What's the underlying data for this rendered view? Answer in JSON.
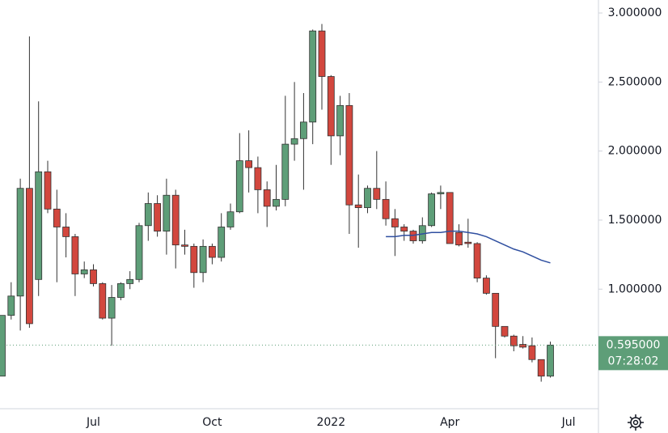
{
  "chart_data": {
    "type": "candlestick",
    "categories": [
      null,
      null,
      null,
      null,
      null,
      null,
      null,
      null,
      null,
      null,
      "Jul",
      null,
      null,
      null,
      null,
      null,
      null,
      null,
      null,
      null,
      null,
      null,
      null,
      "Oct",
      null,
      null,
      null,
      null,
      null,
      null,
      null,
      null,
      null,
      null,
      null,
      null,
      "2022",
      null,
      null,
      null,
      null,
      null,
      null,
      null,
      null,
      null,
      null,
      null,
      null,
      "Apr",
      null,
      null,
      null,
      null,
      null,
      null,
      null,
      null,
      null,
      null,
      null,
      null,
      "Jul",
      null,
      null
    ],
    "open": [
      0.37,
      0.81,
      0.95,
      1.73,
      1.07,
      1.85,
      1.58,
      1.45,
      1.38,
      1.11,
      1.14,
      1.04,
      0.79,
      0.94,
      1.04,
      1.07,
      1.46,
      1.62,
      1.42,
      1.68,
      1.32,
      1.31,
      1.12,
      1.31,
      1.23,
      1.45,
      1.56,
      1.93,
      1.88,
      1.72,
      1.6,
      1.65,
      2.05,
      2.09,
      2.21,
      2.87,
      2.54,
      2.11,
      2.33,
      1.61,
      1.59,
      1.73,
      1.65,
      1.51,
      1.45,
      1.42,
      1.35,
      1.46,
      1.69,
      1.7,
      1.41,
      1.34,
      1.33,
      1.08,
      0.97,
      0.73,
      0.66,
      0.6,
      0.59,
      0.49,
      0.37,
      null,
      null,
      null,
      null
    ],
    "high": [
      0.81,
      1.05,
      1.8,
      2.83,
      2.36,
      1.93,
      1.72,
      1.55,
      1.4,
      1.2,
      1.18,
      1.05,
      1.03,
      1.05,
      1.13,
      1.48,
      1.7,
      1.68,
      1.8,
      1.72,
      1.43,
      1.33,
      1.36,
      1.33,
      1.55,
      1.62,
      2.13,
      2.15,
      1.96,
      1.78,
      1.9,
      2.4,
      2.5,
      2.42,
      2.88,
      2.92,
      2.55,
      2.4,
      2.42,
      1.83,
      1.75,
      2.0,
      1.78,
      1.58,
      1.47,
      1.43,
      1.52,
      1.7,
      1.75,
      1.7,
      1.47,
      1.51,
      1.34,
      1.1,
      0.97,
      0.73,
      0.67,
      0.66,
      0.65,
      0.49,
      0.62,
      null,
      null,
      null,
      null
    ],
    "low": [
      0.37,
      0.78,
      0.7,
      0.72,
      0.95,
      1.55,
      1.05,
      1.23,
      0.95,
      1.08,
      1.02,
      0.78,
      0.59,
      0.92,
      1.0,
      1.05,
      1.35,
      1.38,
      1.25,
      1.15,
      1.25,
      1.01,
      1.05,
      1.18,
      1.2,
      1.43,
      1.55,
      1.7,
      1.55,
      1.45,
      1.57,
      1.6,
      1.93,
      1.72,
      2.05,
      2.3,
      1.9,
      1.97,
      1.4,
      1.3,
      1.55,
      1.58,
      1.46,
      1.24,
      1.35,
      1.33,
      1.33,
      1.45,
      1.58,
      1.33,
      1.31,
      1.3,
      1.05,
      0.96,
      0.5,
      0.65,
      0.55,
      0.57,
      0.47,
      0.33,
      0.36,
      null,
      null,
      null,
      null
    ],
    "close": [
      0.81,
      0.95,
      1.73,
      0.75,
      1.85,
      1.58,
      1.45,
      1.38,
      1.11,
      1.14,
      1.04,
      0.79,
      0.94,
      1.04,
      1.07,
      1.46,
      1.62,
      1.42,
      1.68,
      1.32,
      1.31,
      1.12,
      1.31,
      1.23,
      1.45,
      1.56,
      1.93,
      1.88,
      1.72,
      1.6,
      1.65,
      2.05,
      2.09,
      2.21,
      2.87,
      2.54,
      2.11,
      2.33,
      1.61,
      1.59,
      1.73,
      1.65,
      1.51,
      1.45,
      1.42,
      1.35,
      1.46,
      1.69,
      1.7,
      1.33,
      1.32,
      1.33,
      1.08,
      0.97,
      0.73,
      0.66,
      0.59,
      0.58,
      0.49,
      0.37,
      0.595,
      null,
      null,
      null,
      null
    ],
    "up_color": "#5e9e78",
    "down_color": "#d2473e",
    "moving_average": {
      "color": "#2f4fa0",
      "values": [
        null,
        null,
        null,
        null,
        null,
        null,
        null,
        null,
        null,
        null,
        null,
        null,
        null,
        null,
        null,
        null,
        null,
        null,
        null,
        null,
        null,
        null,
        null,
        null,
        null,
        null,
        null,
        null,
        null,
        null,
        null,
        null,
        null,
        null,
        null,
        null,
        null,
        null,
        null,
        null,
        null,
        null,
        1.38,
        1.38,
        1.39,
        1.39,
        1.4,
        1.41,
        1.41,
        1.42,
        1.42,
        1.41,
        1.4,
        1.38,
        1.35,
        1.32,
        1.29,
        1.27,
        1.24,
        1.21,
        1.19,
        null,
        null,
        null,
        null
      ]
    },
    "ylim": [
      0.134,
      3.094
    ],
    "yticks": [
      {
        "value": 1,
        "label": "1.000000"
      },
      {
        "value": 1.5,
        "label": "1.500000"
      },
      {
        "value": 2,
        "label": "2.000000"
      },
      {
        "value": 2.5,
        "label": "2.500000"
      },
      {
        "value": 3,
        "label": "3.000000"
      }
    ],
    "last_price": {
      "value": 0.595,
      "label": "0.595000"
    },
    "countdown": "07:28:02"
  }
}
